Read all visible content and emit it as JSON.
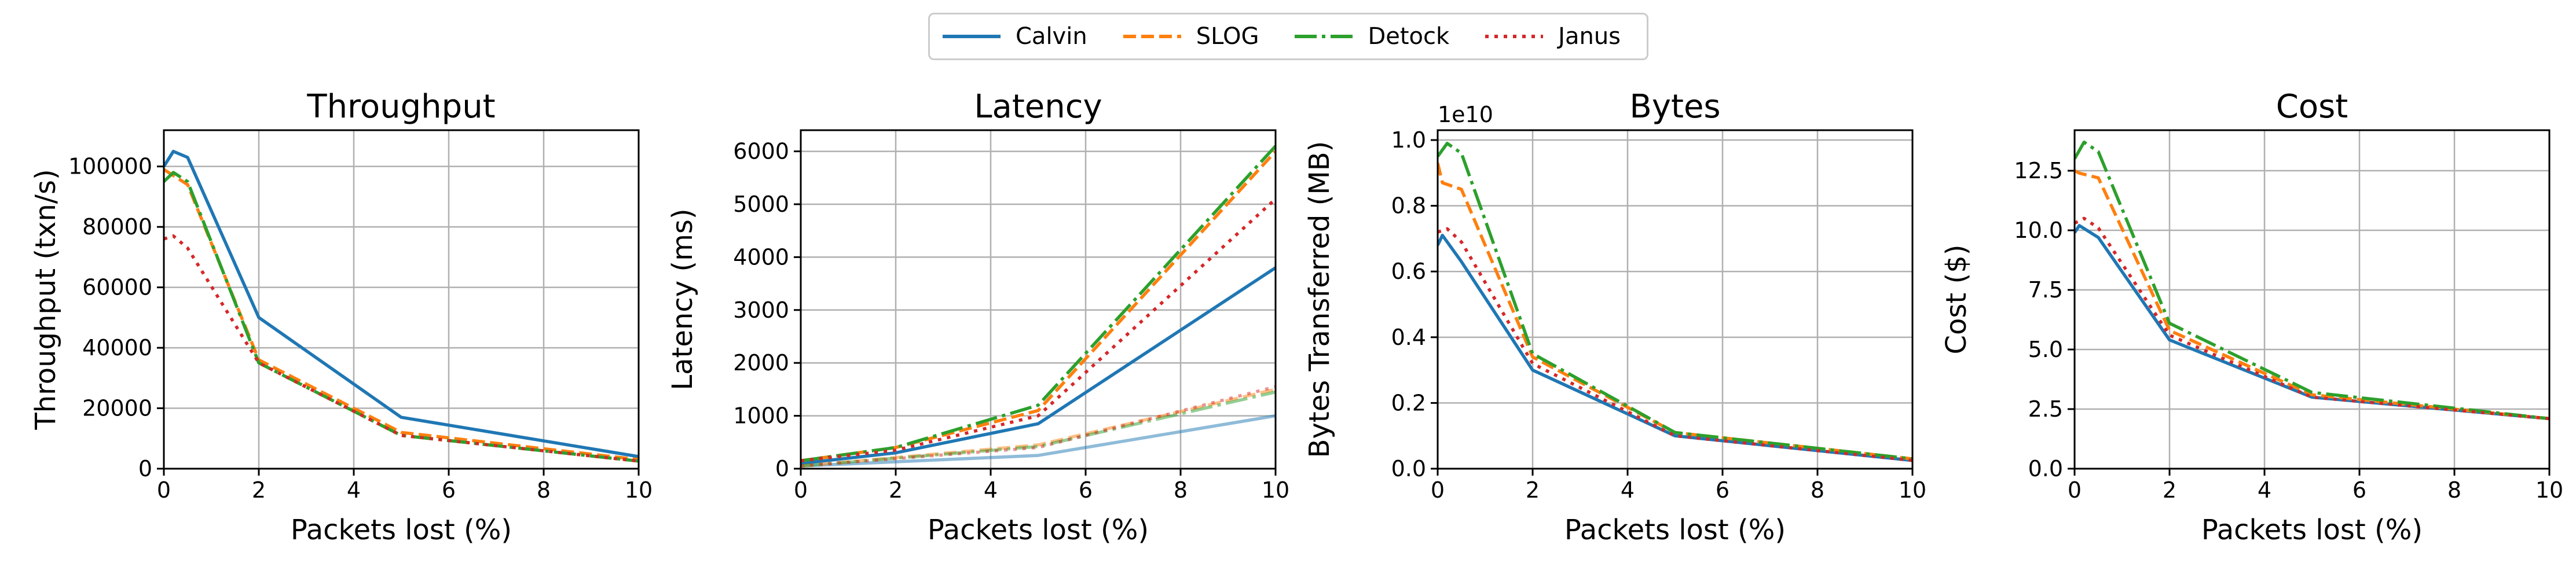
{
  "legend": {
    "items": [
      {
        "label": "Calvin",
        "color": "#1f77b4",
        "style": "solid"
      },
      {
        "label": "SLOG",
        "color": "#ff7f0e",
        "style": "dashed"
      },
      {
        "label": "Detock",
        "color": "#2ca02c",
        "style": "dashdot"
      },
      {
        "label": "Janus",
        "color": "#d62728",
        "style": "dotted"
      }
    ]
  },
  "chart_data": [
    {
      "type": "line",
      "title": "Throughput",
      "xlabel": "Packets lost (%)",
      "ylabel": "Throughput (txn/s)",
      "xlim": [
        0,
        10
      ],
      "ylim": [
        0,
        112000
      ],
      "xticks": [
        0,
        2,
        4,
        6,
        8,
        10
      ],
      "yticks": [
        0,
        20000,
        40000,
        60000,
        80000,
        100000
      ],
      "grid": true,
      "series": [
        {
          "name": "Calvin",
          "x": [
            0,
            0.2,
            0.5,
            2,
            5,
            10
          ],
          "y": [
            100000,
            105000,
            103000,
            50000,
            17000,
            4000
          ]
        },
        {
          "name": "SLOG",
          "x": [
            0,
            0.2,
            0.5,
            2,
            5,
            10
          ],
          "y": [
            99000,
            97000,
            94000,
            36000,
            12000,
            3000
          ]
        },
        {
          "name": "Detock",
          "x": [
            0,
            0.2,
            0.5,
            2,
            5,
            10
          ],
          "y": [
            95000,
            98000,
            95000,
            35000,
            11000,
            2500
          ]
        },
        {
          "name": "Janus",
          "x": [
            0,
            0.2,
            0.5,
            2,
            5,
            10
          ],
          "y": [
            76000,
            77000,
            73000,
            35000,
            11000,
            2500
          ]
        }
      ]
    },
    {
      "type": "line",
      "title": "Latency",
      "xlabel": "Packets lost (%)",
      "ylabel": "Latency (ms)",
      "xlim": [
        0,
        10
      ],
      "ylim": [
        0,
        6400
      ],
      "xticks": [
        0,
        2,
        4,
        6,
        8,
        10
      ],
      "yticks": [
        0,
        1000,
        2000,
        3000,
        4000,
        5000,
        6000
      ],
      "grid": true,
      "series": [
        {
          "name": "Calvin",
          "x": [
            0,
            2,
            5,
            10
          ],
          "y": [
            100,
            300,
            850,
            3800
          ]
        },
        {
          "name": "SLOG",
          "x": [
            0,
            2,
            5,
            10
          ],
          "y": [
            150,
            400,
            1100,
            6000
          ]
        },
        {
          "name": "Detock",
          "x": [
            0,
            2,
            5,
            10
          ],
          "y": [
            150,
            400,
            1200,
            6100
          ]
        },
        {
          "name": "Janus",
          "x": [
            0,
            2,
            5,
            10
          ],
          "y": [
            150,
            350,
            1000,
            5100
          ]
        },
        {
          "name": "Calvin",
          "faded": true,
          "x": [
            0,
            5,
            10
          ],
          "y": [
            50,
            250,
            1000
          ]
        },
        {
          "name": "SLOG",
          "faded": true,
          "x": [
            0,
            5,
            10
          ],
          "y": [
            50,
            450,
            1500
          ]
        },
        {
          "name": "Detock",
          "faded": true,
          "x": [
            0,
            5,
            10
          ],
          "y": [
            50,
            420,
            1450
          ]
        },
        {
          "name": "Janus",
          "faded": true,
          "x": [
            0,
            5,
            10
          ],
          "y": [
            50,
            400,
            1550
          ]
        }
      ]
    },
    {
      "type": "line",
      "title": "Bytes",
      "xlabel": "Packets lost (%)",
      "ylabel": "Bytes Transferred (MB)",
      "offset_text": "1e10",
      "xlim": [
        0,
        10
      ],
      "ylim": [
        0,
        1.03
      ],
      "xticks": [
        0,
        2,
        4,
        6,
        8,
        10
      ],
      "yticks": [
        0.0,
        0.2,
        0.4,
        0.6,
        0.8,
        1.0
      ],
      "ytick_labels": [
        "0.0",
        "0.2",
        "0.4",
        "0.6",
        "0.8",
        "1.0"
      ],
      "grid": true,
      "series": [
        {
          "name": "Calvin",
          "x": [
            0,
            0.1,
            0.5,
            2,
            5,
            10
          ],
          "y": [
            0.68,
            0.71,
            0.63,
            0.3,
            0.1,
            0.025
          ]
        },
        {
          "name": "SLOG",
          "x": [
            0,
            0.1,
            0.5,
            2,
            5,
            10
          ],
          "y": [
            0.93,
            0.87,
            0.85,
            0.34,
            0.11,
            0.03
          ]
        },
        {
          "name": "Detock",
          "x": [
            0,
            0.2,
            0.5,
            2,
            5,
            10
          ],
          "y": [
            0.95,
            0.99,
            0.96,
            0.35,
            0.11,
            0.03
          ]
        },
        {
          "name": "Janus",
          "x": [
            0,
            0.2,
            0.5,
            2,
            5,
            10
          ],
          "y": [
            0.72,
            0.73,
            0.69,
            0.32,
            0.1,
            0.025
          ]
        }
      ]
    },
    {
      "type": "line",
      "title": "Cost",
      "xlabel": "Packets lost (%)",
      "ylabel": "Cost ($)",
      "xlim": [
        0,
        10
      ],
      "ylim": [
        0,
        14.2
      ],
      "xticks": [
        0,
        2,
        4,
        6,
        8,
        10
      ],
      "yticks": [
        0,
        2.5,
        5,
        7.5,
        10,
        12.5
      ],
      "ytick_labels": [
        "0.0",
        "2.5",
        "5.0",
        "7.5",
        "10.0",
        "12.5"
      ],
      "grid": true,
      "series": [
        {
          "name": "Calvin",
          "x": [
            0,
            0.1,
            0.5,
            2,
            5,
            10
          ],
          "y": [
            9.9,
            10.2,
            9.7,
            5.4,
            3.0,
            2.1
          ]
        },
        {
          "name": "SLOG",
          "x": [
            0,
            0.1,
            0.5,
            2,
            5,
            10
          ],
          "y": [
            12.5,
            12.4,
            12.2,
            5.8,
            3.1,
            2.1
          ]
        },
        {
          "name": "Detock",
          "x": [
            0,
            0.2,
            0.5,
            2,
            5,
            10
          ],
          "y": [
            13.0,
            13.7,
            13.3,
            6.1,
            3.2,
            2.1
          ]
        },
        {
          "name": "Janus",
          "x": [
            0,
            0.2,
            0.5,
            2,
            5,
            10
          ],
          "y": [
            10.3,
            10.5,
            10.1,
            5.6,
            3.0,
            2.1
          ]
        }
      ]
    }
  ]
}
